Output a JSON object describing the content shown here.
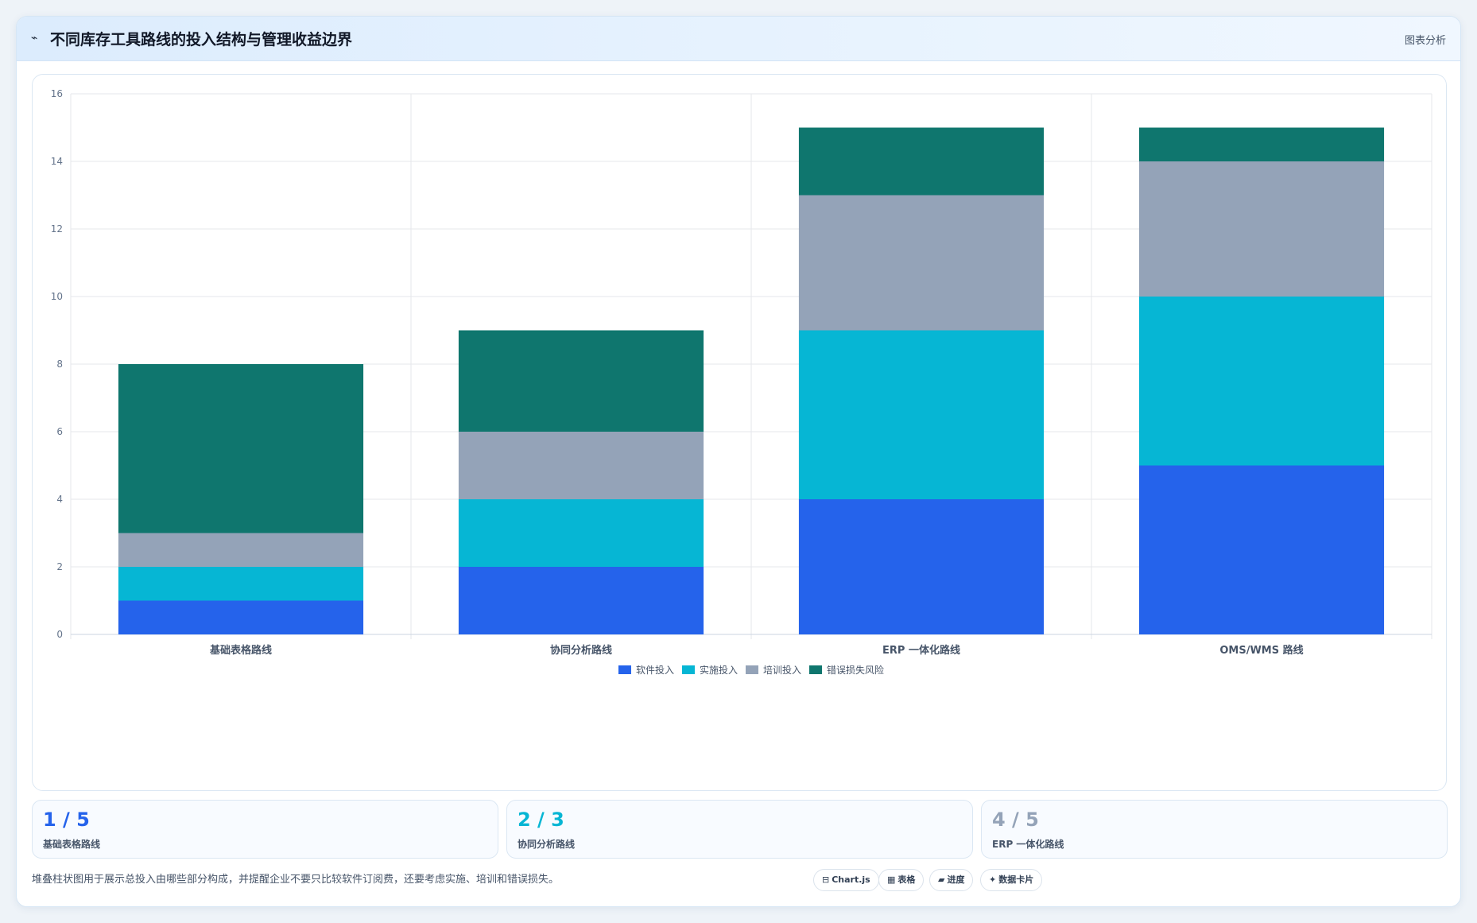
{
  "header": {
    "icon": "chart-line-icon",
    "title": "不同库存工具路线的投入结构与管理收益边界",
    "tag": "图表分析"
  },
  "chart_data": {
    "type": "bar",
    "stacked": true,
    "categories": [
      "基础表格路线",
      "协同分析路线",
      "ERP 一体化路线",
      "OMS/WMS 路线"
    ],
    "series": [
      {
        "name": "软件投入",
        "color": "#2563eb",
        "values": [
          1,
          2,
          4,
          5
        ]
      },
      {
        "name": "实施投入",
        "color": "#06b6d4",
        "values": [
          1,
          2,
          5,
          5
        ]
      },
      {
        "name": "培训投入",
        "color": "#94a3b8",
        "values": [
          1,
          2,
          4,
          4
        ]
      },
      {
        "name": "错误损失风险",
        "color": "#0f766e",
        "values": [
          5,
          3,
          2,
          1
        ]
      }
    ],
    "ylim": [
      0,
      16
    ],
    "yticks": [
      0,
      2,
      4,
      6,
      8,
      10,
      12,
      14,
      16
    ],
    "grid": true,
    "legend": "bottom"
  },
  "stats": [
    {
      "value": "1 / 5",
      "label": "基础表格路线",
      "color": "#2563eb"
    },
    {
      "value": "2 / 3",
      "label": "协同分析路线",
      "color": "#06b6d4"
    },
    {
      "value": "4 / 5",
      "label": "ERP 一体化路线",
      "color": "#94a3b8"
    }
  ],
  "footer": {
    "note": "堆叠柱状图用于展示总投入由哪些部分构成，并提醒企业不要只比较软件订阅费，还要考虑实施、培训和错误损失。",
    "chips": [
      {
        "icon": "chart-icon",
        "glyph": "⊟",
        "label": "Chart.js"
      },
      {
        "icon": "table-icon",
        "glyph": "▦",
        "label": "表格"
      },
      {
        "icon": "progress-icon",
        "glyph": "▰",
        "label": "进度"
      },
      {
        "icon": "sparkle-icon",
        "glyph": "✦",
        "label": "数据卡片"
      }
    ]
  }
}
